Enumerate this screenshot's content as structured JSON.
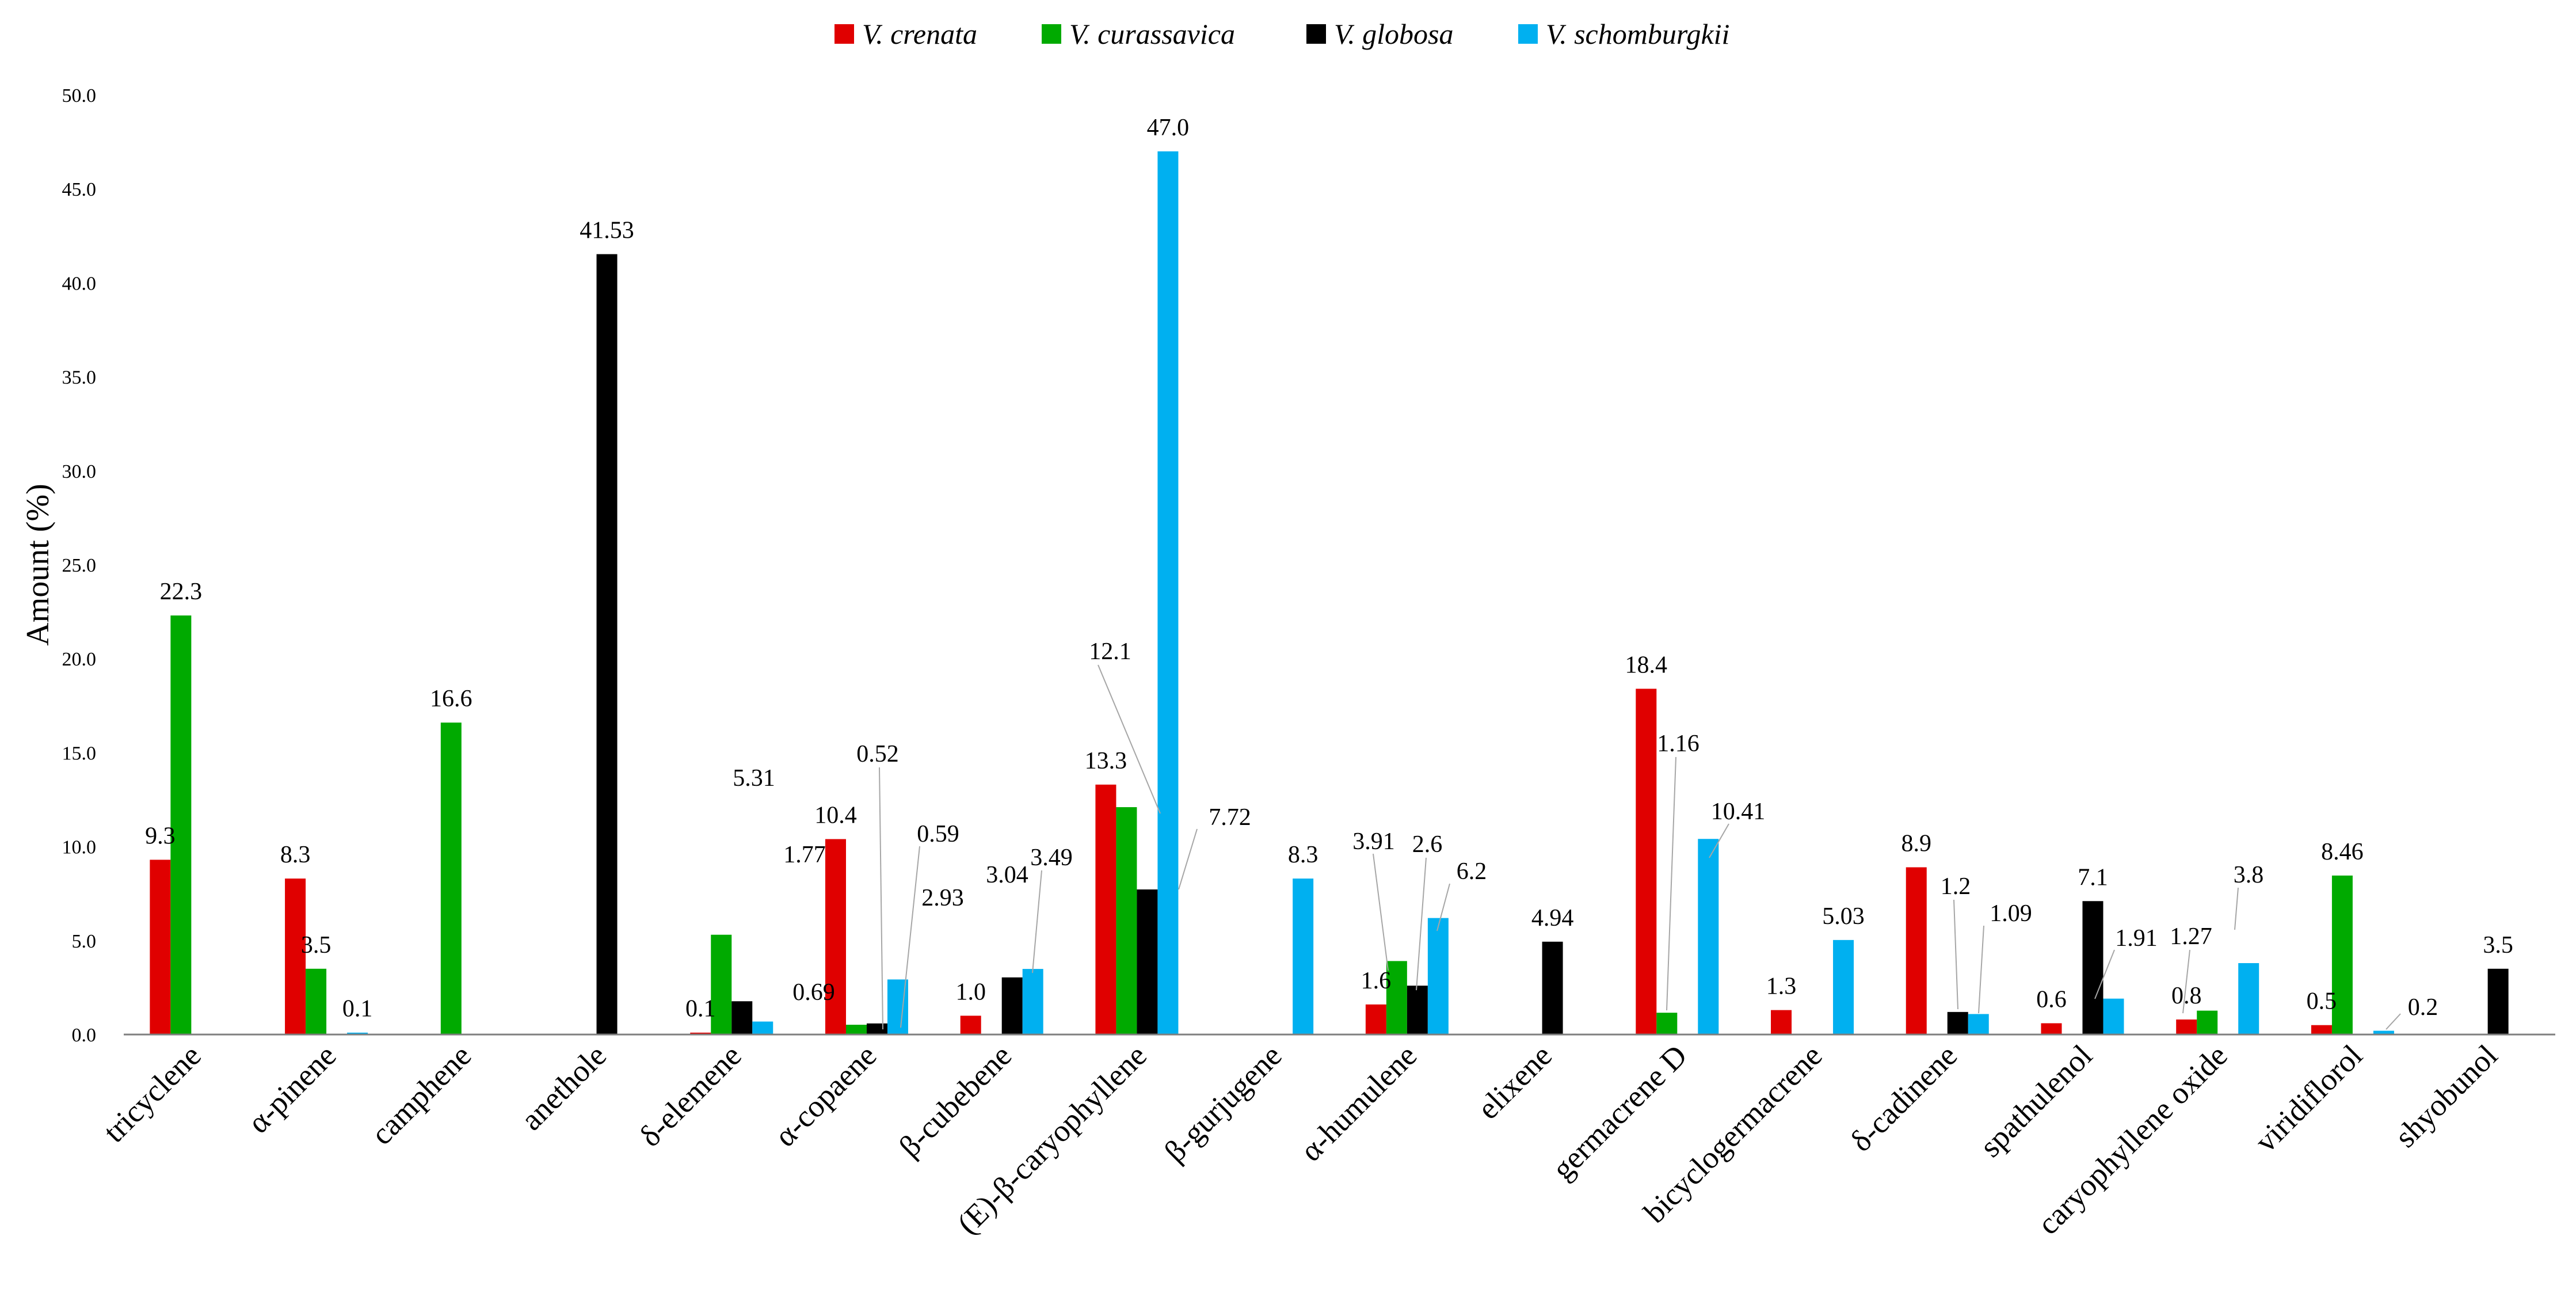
{
  "chart_data": {
    "type": "bar",
    "ylabel": "Amount (%)",
    "ylim": [
      0,
      50
    ],
    "yticks": [
      "0.0",
      "5.0",
      "10.0",
      "15.0",
      "20.0",
      "25.0",
      "30.0",
      "35.0",
      "40.0",
      "45.0",
      "50.0"
    ],
    "grid": false,
    "legend_position": "top-center",
    "categories": [
      "tricyclene",
      "α-pinene",
      "camphene",
      "anethole",
      "δ-elemene",
      "α-copaene",
      "β-cubebene",
      "(E)-β-caryophyllene",
      "β-gurjugene",
      "α-humulene",
      "elixene",
      "germacrene D",
      "bicyclogermacrene",
      "δ-cadinene",
      "spathulenol",
      "caryophyllene oxide",
      "viridiflorol",
      "shyobunol"
    ],
    "series": [
      {
        "name": "V. crenata",
        "color": "#e00000",
        "values": [
          9.3,
          8.3,
          null,
          null,
          0.1,
          10.4,
          1.0,
          13.3,
          null,
          1.6,
          null,
          18.4,
          1.3,
          8.9,
          0.6,
          0.8,
          0.5,
          null
        ],
        "labels": [
          "9.3",
          "8.3",
          null,
          null,
          "0.1",
          "10.4",
          "1.0",
          "13.3",
          null,
          "1.6",
          null,
          "18.4",
          "1.3",
          "8.9",
          "0.6",
          "0.8",
          "0.5",
          null
        ]
      },
      {
        "name": "V. curassavica",
        "color": "#00aa00",
        "values": [
          22.3,
          3.5,
          16.6,
          null,
          5.31,
          0.52,
          null,
          12.1,
          null,
          3.91,
          null,
          1.16,
          null,
          null,
          null,
          1.27,
          8.46,
          null
        ],
        "labels": [
          "22.3",
          "3.5",
          "16.6",
          null,
          "5.31",
          "0.52",
          null,
          "12.1",
          null,
          "3.91",
          null,
          "1.16",
          null,
          null,
          null,
          "1.27",
          "8.46",
          null
        ]
      },
      {
        "name": "V. globosa",
        "color": "#000000",
        "values": [
          null,
          null,
          null,
          41.53,
          1.77,
          0.59,
          3.04,
          7.72,
          null,
          2.6,
          4.94,
          null,
          null,
          1.2,
          7.1,
          null,
          null,
          3.5
        ],
        "labels": [
          null,
          null,
          null,
          "41.53",
          "1.77",
          "0.59",
          "3.04",
          "7.72",
          null,
          "2.6",
          "4.94",
          null,
          null,
          "1.2",
          "7.1",
          null,
          null,
          "3.5"
        ]
      },
      {
        "name": "V. schomburgkii",
        "color": "#00b0f0",
        "values": [
          null,
          0.1,
          null,
          null,
          0.69,
          2.93,
          3.49,
          47.0,
          8.3,
          6.2,
          null,
          10.41,
          5.03,
          1.09,
          1.91,
          3.8,
          0.2,
          null
        ],
        "labels": [
          null,
          "0.1",
          null,
          null,
          "0.69",
          "2.93",
          "3.49",
          "47.0",
          "8.3",
          "6.2",
          null,
          "10.41",
          "5.03",
          "1.09",
          "1.91",
          "3.8",
          "0.2",
          null
        ]
      }
    ]
  }
}
